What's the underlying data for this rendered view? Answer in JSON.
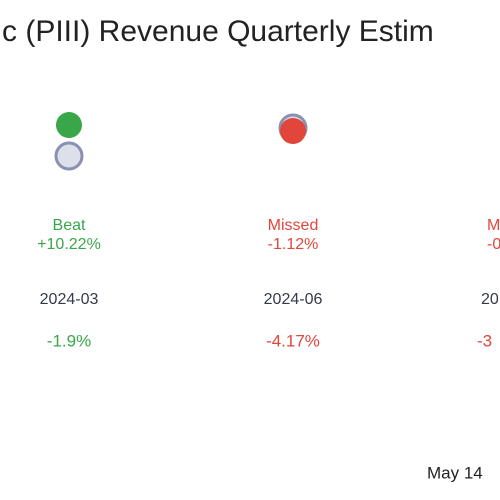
{
  "chart_data": {
    "type": "estimate",
    "title": "c (PIII) Revenue Quarterly Estim",
    "date": "May 14",
    "categories": [
      "2024-03",
      "2024-06",
      "20"
    ],
    "results": [
      "Beat",
      "Missed",
      "M"
    ],
    "colors": [
      "#3aa64a",
      "#e2463a",
      "#e2463a"
    ],
    "surprise_values": [
      10.22,
      -1.12,
      null
    ],
    "surprise_labels": [
      "+10.22%",
      "-1.12%",
      "-0"
    ],
    "price_change_values": [
      -1.9,
      -4.17,
      null
    ],
    "price_change_labels": [
      "-1.9%",
      "-4.17%",
      "-3"
    ]
  }
}
